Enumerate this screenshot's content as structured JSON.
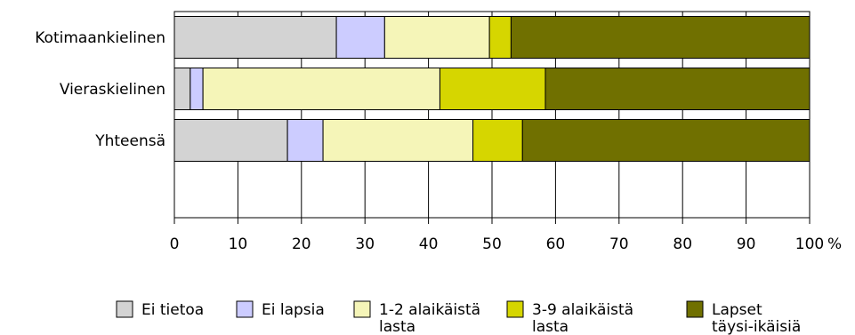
{
  "chart_data": {
    "type": "bar",
    "orientation": "horizontal",
    "stacked": true,
    "categories": [
      "Kotimaankielinen",
      "Vieraskielinen",
      "Yhteensä"
    ],
    "series": [
      {
        "name": "Ei tietoa",
        "color": "#d3d3d3",
        "values": [
          25.5,
          2.5,
          17.8
        ]
      },
      {
        "name": "Ei lapsia",
        "color": "#ccccff",
        "values": [
          7.6,
          2.0,
          5.6
        ]
      },
      {
        "name": "1-2 alaikäistä lasta",
        "color": "#f5f5b8",
        "values": [
          16.5,
          37.3,
          23.6
        ]
      },
      {
        "name": "3-9 alaikäistä lasta",
        "color": "#d6d600",
        "values": [
          3.4,
          16.6,
          7.8
        ]
      },
      {
        "name": "Lapset täysi-ikäisiä",
        "color": "#707000",
        "values": [
          47.0,
          41.6,
          45.2
        ]
      }
    ],
    "xlim": [
      0,
      100
    ],
    "xticks": [
      0,
      10,
      20,
      30,
      40,
      50,
      60,
      70,
      80,
      90,
      100
    ],
    "xunit": "%",
    "grid": true,
    "legend_position": "bottom"
  }
}
